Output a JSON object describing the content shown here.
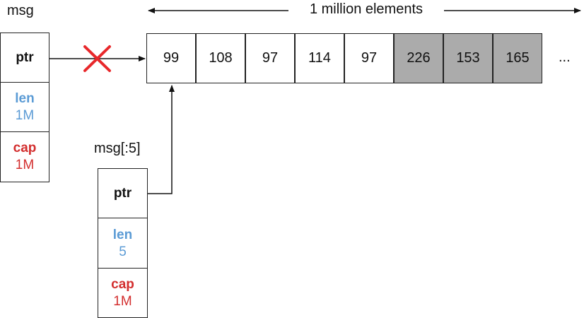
{
  "labels": {
    "msg": "msg",
    "msg_slice": "msg[:5]",
    "span": "1 million elements",
    "ellipsis": "..."
  },
  "msg_header": {
    "ptr": "ptr",
    "len_label": "len",
    "len_value": "1M",
    "cap_label": "cap",
    "cap_value": "1M"
  },
  "slice_header": {
    "ptr": "ptr",
    "len_label": "len",
    "len_value": "5",
    "cap_label": "cap",
    "cap_value": "1M"
  },
  "array": {
    "cells": [
      "99",
      "108",
      "97",
      "114",
      "97",
      "226",
      "153",
      "165"
    ],
    "greyed_indices": [
      5,
      6,
      7
    ]
  },
  "colors": {
    "len": "#5b9bd5",
    "cap": "#d32f2f",
    "grey_cell": "#ababab",
    "cross": "#e8282b"
  }
}
